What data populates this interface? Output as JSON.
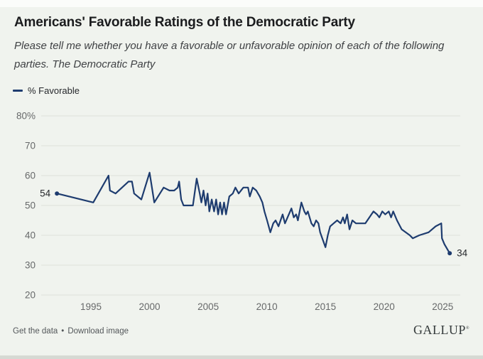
{
  "header": {
    "title": "Americans' Favorable Ratings of the Democratic Party",
    "subtitle": "Please tell me whether you have a favorable or unfavorable opinion of each of the following parties. The Democratic Party"
  },
  "legend": {
    "series_label": "% Favorable"
  },
  "chart_data": {
    "type": "line",
    "title": "Americans' Favorable Ratings of the Democratic Party",
    "xlabel": "",
    "ylabel": "% Favorable",
    "xlim": [
      1991.0,
      2026.5
    ],
    "ylim": [
      20,
      80
    ],
    "grid": "horizontal",
    "x_ticks": [
      1995,
      2000,
      2005,
      2010,
      2015,
      2020,
      2025
    ],
    "y_ticks": [
      80,
      70,
      60,
      50,
      40,
      30,
      20
    ],
    "y_tick_labels": [
      "80%",
      "70",
      "60",
      "50",
      "40",
      "30",
      "20"
    ],
    "line_color": "#1e3c6f",
    "grid_color": "#dee1da",
    "axis_label_color": "#67696a",
    "annotation_color": "#26282c",
    "series": [
      {
        "name": "% Favorable",
        "points": [
          [
            1992.1,
            54
          ],
          [
            1995.2,
            51
          ],
          [
            1996.5,
            60
          ],
          [
            1996.62,
            55
          ],
          [
            1997.1,
            54
          ],
          [
            1998.2,
            58
          ],
          [
            1998.5,
            58
          ],
          [
            1998.68,
            54
          ],
          [
            1999.3,
            52
          ],
          [
            2000.0,
            61
          ],
          [
            2000.4,
            51
          ],
          [
            2001.2,
            56
          ],
          [
            2001.7,
            55
          ],
          [
            2002.1,
            55
          ],
          [
            2002.4,
            56
          ],
          [
            2002.52,
            58
          ],
          [
            2002.7,
            52
          ],
          [
            2002.9,
            50
          ],
          [
            2003.7,
            50
          ],
          [
            2004.02,
            59
          ],
          [
            2004.28,
            54
          ],
          [
            2004.42,
            51
          ],
          [
            2004.6,
            55
          ],
          [
            2004.78,
            50
          ],
          [
            2004.95,
            54
          ],
          [
            2005.1,
            48
          ],
          [
            2005.3,
            52
          ],
          [
            2005.5,
            48
          ],
          [
            2005.68,
            52
          ],
          [
            2005.85,
            47
          ],
          [
            2006.02,
            51
          ],
          [
            2006.18,
            47
          ],
          [
            2006.35,
            51
          ],
          [
            2006.52,
            47
          ],
          [
            2006.8,
            53
          ],
          [
            2007.1,
            54
          ],
          [
            2007.32,
            56
          ],
          [
            2007.6,
            54
          ],
          [
            2008.0,
            56
          ],
          [
            2008.4,
            56
          ],
          [
            2008.55,
            53
          ],
          [
            2008.8,
            56
          ],
          [
            2009.1,
            55
          ],
          [
            2009.4,
            53
          ],
          [
            2009.62,
            51
          ],
          [
            2009.8,
            48
          ],
          [
            2010.02,
            45
          ],
          [
            2010.3,
            41
          ],
          [
            2010.55,
            44
          ],
          [
            2010.75,
            45
          ],
          [
            2011.0,
            43
          ],
          [
            2011.35,
            47
          ],
          [
            2011.55,
            44
          ],
          [
            2012.1,
            49
          ],
          [
            2012.3,
            46
          ],
          [
            2012.5,
            47
          ],
          [
            2012.65,
            45
          ],
          [
            2012.95,
            51
          ],
          [
            2013.2,
            48
          ],
          [
            2013.35,
            47
          ],
          [
            2013.5,
            48
          ],
          [
            2013.8,
            44
          ],
          [
            2014.0,
            43
          ],
          [
            2014.2,
            45
          ],
          [
            2014.4,
            44
          ],
          [
            2014.55,
            41
          ],
          [
            2015.0,
            36
          ],
          [
            2015.2,
            40
          ],
          [
            2015.4,
            43
          ],
          [
            2015.7,
            44
          ],
          [
            2016.0,
            45
          ],
          [
            2016.3,
            44
          ],
          [
            2016.5,
            46
          ],
          [
            2016.65,
            44
          ],
          [
            2016.85,
            47
          ],
          [
            2017.05,
            42
          ],
          [
            2017.3,
            45
          ],
          [
            2017.6,
            44
          ],
          [
            2018.4,
            44
          ],
          [
            2018.75,
            46
          ],
          [
            2019.1,
            48
          ],
          [
            2019.4,
            47
          ],
          [
            2019.6,
            46
          ],
          [
            2019.85,
            48
          ],
          [
            2020.1,
            47
          ],
          [
            2020.4,
            48
          ],
          [
            2020.6,
            46
          ],
          [
            2020.78,
            48
          ],
          [
            2021.1,
            45
          ],
          [
            2021.5,
            42
          ],
          [
            2022.2,
            40
          ],
          [
            2022.45,
            39
          ],
          [
            2023.0,
            40
          ],
          [
            2023.8,
            41
          ],
          [
            2024.4,
            43
          ],
          [
            2024.88,
            44
          ],
          [
            2024.94,
            39
          ],
          [
            2025.15,
            37
          ],
          [
            2025.6,
            34
          ]
        ]
      }
    ],
    "annotations": [
      {
        "x": 1992.1,
        "y": 54,
        "label": "54",
        "align": "left"
      },
      {
        "x": 2025.6,
        "y": 34,
        "label": "34",
        "align": "right"
      }
    ]
  },
  "footer": {
    "link_get_data": "Get the data",
    "bullet": "•",
    "link_download": "Download image",
    "brand": "GALLUP",
    "brand_mark": "®"
  },
  "colors": {
    "panel_background": "#f0f3ee",
    "page_background": "#fbfcfa",
    "bottom_strip": "#d6d9d3",
    "title_text": "#1b1c1e",
    "subtitle_text": "#3f4144",
    "line_navy": "#1e3c6f"
  }
}
